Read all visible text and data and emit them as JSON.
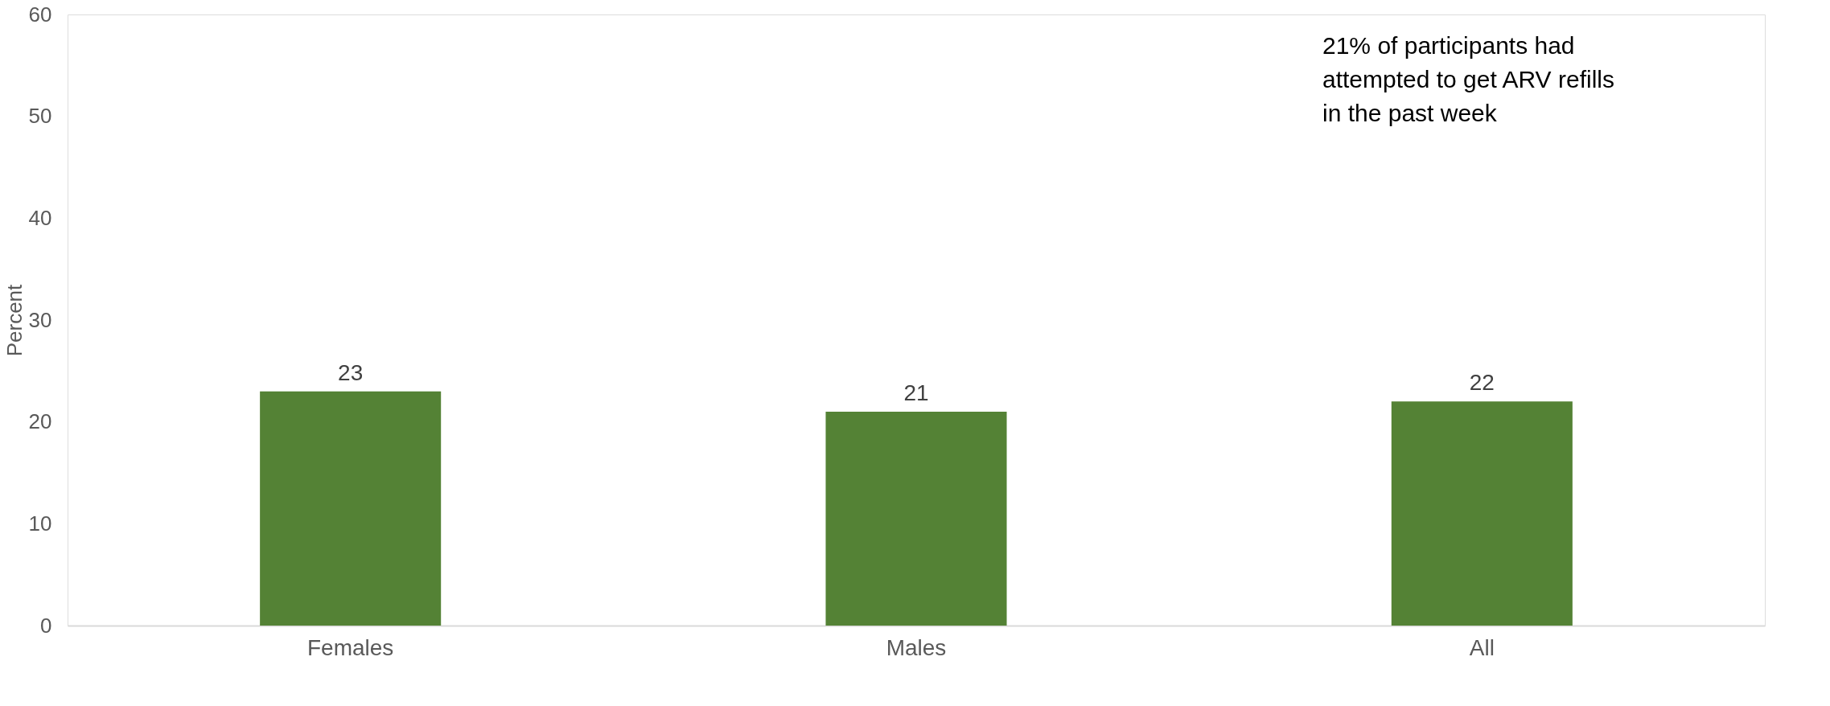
{
  "chart_data": {
    "type": "bar",
    "ylabel": "Percent",
    "categories": [
      "Females",
      "Males",
      "All"
    ],
    "values": [
      23,
      21,
      22
    ],
    "color": "#548235",
    "ylim": [
      0,
      60
    ],
    "yticks": [
      0,
      10,
      20,
      30,
      40,
      50,
      60
    ],
    "grid": false,
    "data_labels": true,
    "annotations": [
      "21% of participants had attempted to get ARV refills in the past week"
    ]
  }
}
